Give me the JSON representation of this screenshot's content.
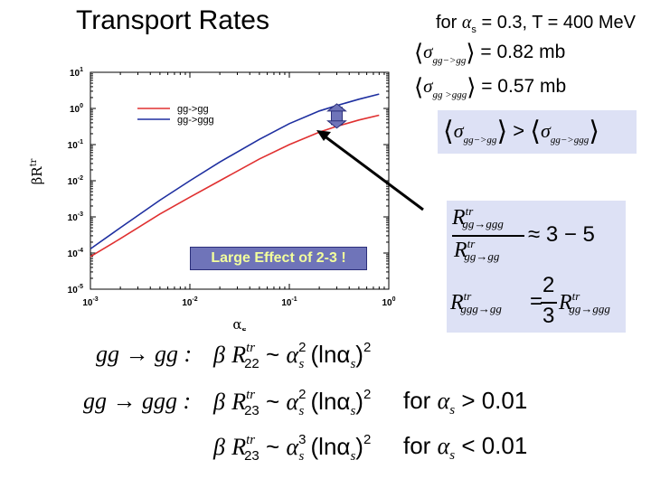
{
  "header": {
    "title": "Transport Rates"
  },
  "chart_data": {
    "type": "line",
    "title": "",
    "xlabel": "α_s",
    "ylabel": "βR^tr",
    "xscale": "log",
    "yscale": "log",
    "xlim": [
      0.001,
      1
    ],
    "ylim": [
      1e-05,
      10
    ],
    "x_ticks": [
      "10^-3",
      "10^-2",
      "10^-1",
      "10^0"
    ],
    "y_ticks": [
      "10^-5",
      "10^-4",
      "10^-3",
      "10^-2",
      "10^-1",
      "10^0",
      "10^1"
    ],
    "legend_position": "top-left",
    "series": [
      {
        "name": "gg->gg",
        "color": "#e03030",
        "x": [
          0.001,
          0.002,
          0.005,
          0.01,
          0.02,
          0.05,
          0.1,
          0.2,
          0.3,
          0.5,
          0.8
        ],
        "y": [
          8e-05,
          0.00025,
          0.0012,
          0.0035,
          0.01,
          0.04,
          0.1,
          0.22,
          0.32,
          0.48,
          0.65
        ]
      },
      {
        "name": "gg->ggg",
        "color": "#1e2fa0",
        "x": [
          0.001,
          0.002,
          0.005,
          0.01,
          0.02,
          0.05,
          0.1,
          0.2,
          0.3,
          0.5,
          0.8
        ],
        "y": [
          0.00013,
          0.0005,
          0.0029,
          0.01,
          0.033,
          0.14,
          0.38,
          0.85,
          1.2,
          1.8,
          2.5
        ]
      }
    ],
    "annotation": "Large Effect of 2-3 !",
    "bracket_x": 0.3
  },
  "condition": {
    "for": "for",
    "alpha": "α",
    "s": "s",
    "rest": " = 0.3, T = 400 MeV"
  },
  "cross_sections": [
    {
      "sub": "gg−>gg",
      "value": "= 0.82 mb"
    },
    {
      "sub": "gg  >ggg",
      "value": "= 0.57 mb"
    }
  ],
  "inequality": {
    "lhs_sub": "gg−>gg",
    "op": ">",
    "rhs_sub": "gg−>ggg"
  },
  "ratio": {
    "num": "R",
    "num_sup": "tr",
    "num_sub": "gg→ggg",
    "den": "R",
    "den_sup": "tr",
    "den_sub": "gg→gg",
    "approx": "≈ 3 − 5",
    "lhs2": "R",
    "lhs2_sup": "tr",
    "lhs2_sub": "ggg→gg",
    "eq": "=",
    "frac_num": "2",
    "frac_den": "3",
    "rhs2": "R",
    "rhs2_sup": "tr",
    "rhs2_sub": "gg→ggg"
  },
  "equations": [
    {
      "process": "gg → gg :",
      "beta": "β",
      "R": "R",
      "sup": "tr",
      "sub": "22",
      "sim": "~",
      "alpha": "α",
      "asup": "2",
      "asub": "s",
      "log": "(lnα",
      "lsub": "s",
      "close": ")",
      "lsup": "2"
    },
    {
      "process": "gg → ggg :",
      "beta": "β",
      "R": "R",
      "sup": "tr",
      "sub": "23",
      "sim": "~",
      "alpha": "α",
      "asup": "2",
      "asub": "s",
      "log": "(lnα",
      "lsub": "s",
      "close": ")",
      "lsup": "2",
      "cond": "for",
      "calpha": "α",
      "csub": "s",
      "crel": "> 0.01"
    },
    {
      "process": "",
      "beta": "β",
      "R": "R",
      "sup": "tr",
      "sub": "23",
      "sim": "~",
      "alpha": "α",
      "asup": "3",
      "asub": "s",
      "log": "(lnα",
      "lsub": "s",
      "close": ")",
      "lsup": "2",
      "cond": "for",
      "calpha": "α",
      "csub": "s",
      "crel": "< 0.01"
    }
  ]
}
